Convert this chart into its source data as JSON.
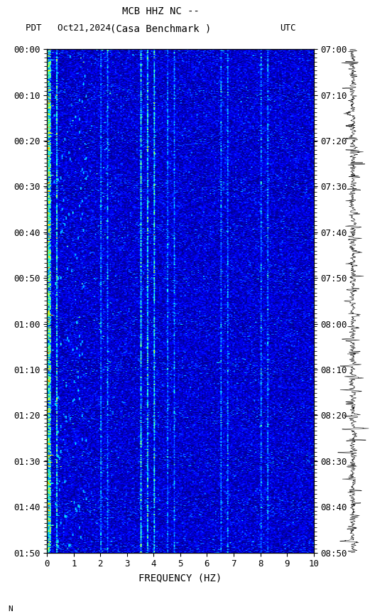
{
  "title_line1": "MCB HHZ NC --",
  "title_line2": "(Casa Benchmark )",
  "left_label": "PDT   Oct21,2024",
  "right_label": "UTC",
  "xlabel": "FREQUENCY (HZ)",
  "freq_min": 0,
  "freq_max": 10,
  "freq_ticks": [
    0,
    1,
    2,
    3,
    4,
    5,
    6,
    7,
    8,
    9,
    10
  ],
  "time_left_labels": [
    "00:00",
    "00:10",
    "00:20",
    "00:30",
    "00:40",
    "00:50",
    "01:00",
    "01:10",
    "01:20",
    "01:30",
    "01:40",
    "01:50"
  ],
  "time_right_labels": [
    "07:00",
    "07:10",
    "07:20",
    "07:30",
    "07:40",
    "07:50",
    "08:00",
    "08:10",
    "08:20",
    "08:30",
    "08:40",
    "08:50"
  ],
  "n_time": 720,
  "n_freq": 200,
  "background_color": "#ffffff",
  "spectrogram_bg": "#00008B",
  "colormap": "jet",
  "seismogram_right": true
}
